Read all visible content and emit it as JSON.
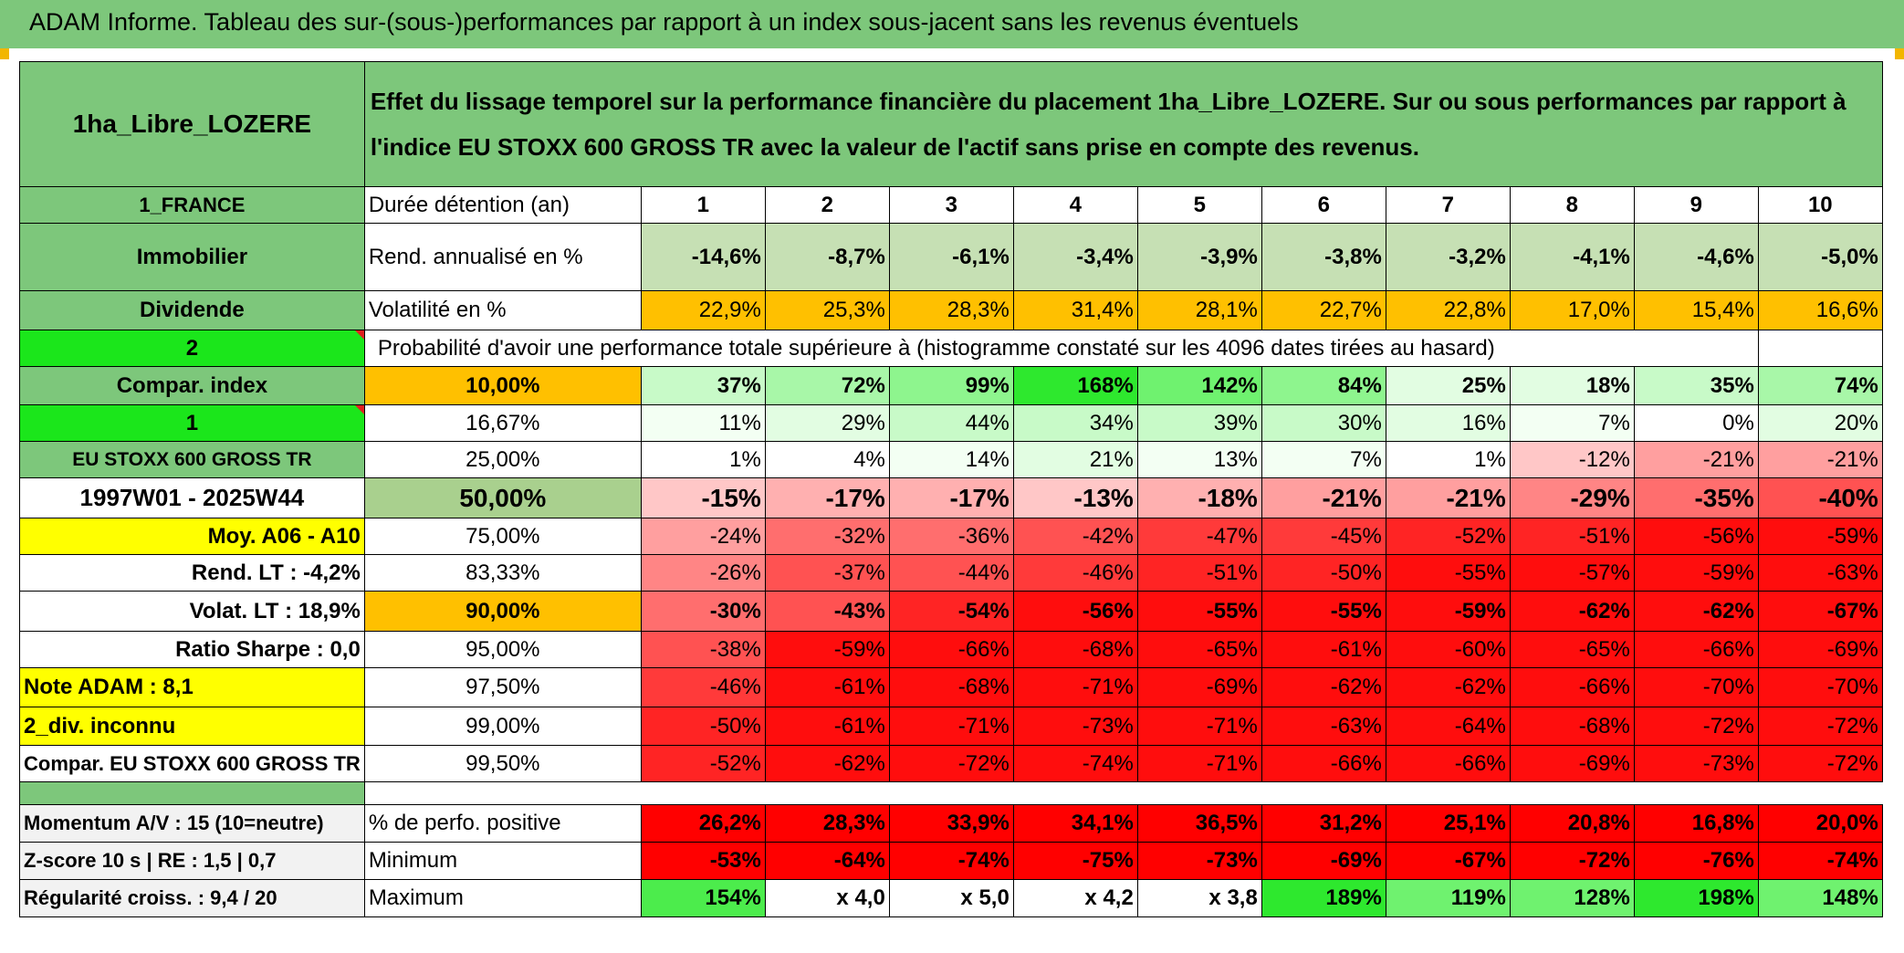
{
  "title": "ADAM Informe. Tableau des sur-(sous-)performances par rapport à un index sous-jacent sans les revenus éventuels",
  "fund_name": "1ha_Libre_LOZERE",
  "description": "Effet du lissage temporel sur la performance financière du placement 1ha_Libre_LOZERE. Sur ou sous performances par rapport à l'indice EU STOXX 600 GROSS TR avec la valeur de l'actif sans prise en compte des revenus.",
  "side": {
    "country": "1_FRANCE",
    "category": "Immobilier",
    "type": "Dividende",
    "sel1": "2",
    "compar_index_label": "Compar. index",
    "sel2": "1",
    "index_name": "EU STOXX 600 GROSS TR",
    "period": "1997W01 - 2025W44",
    "moy": "Moy. A06 - A10",
    "rend_lt": "Rend. LT :    -4,2%",
    "volat_lt": "Volat. LT :   18,9%",
    "sharpe": "Ratio Sharpe :    0,0",
    "note": "Note ADAM : 8,1",
    "div": "2_div. inconnu",
    "compar": "Compar. EU STOXX 600 GROSS TR",
    "momentum": "Momentum A/V : 15 (10=neutre)",
    "zscore": "Z-score 10 s | RE : 1,5 | 0,7",
    "regul": "Régularité croiss. : 9,4 / 20"
  },
  "stats": {
    "duration_label": "Durée détention (an)",
    "years": [
      "1",
      "2",
      "3",
      "4",
      "5",
      "6",
      "7",
      "8",
      "9",
      "10"
    ],
    "rend_label": "Rend. annualisé en %",
    "rend": [
      "-14,6%",
      "-8,7%",
      "-6,1%",
      "-3,4%",
      "-3,9%",
      "-3,8%",
      "-3,2%",
      "-4,1%",
      "-4,6%",
      "-5,0%"
    ],
    "vol_label": "Volatilité en %",
    "vol": [
      "22,9%",
      "25,3%",
      "28,3%",
      "31,4%",
      "28,1%",
      "22,7%",
      "22,8%",
      "17,0%",
      "15,4%",
      "16,6%"
    ]
  },
  "prob_header": "Probabilité d'avoir une performance totale supérieure à (histogramme constaté sur les 4096 dates tirées au hasard)",
  "prob_rows": [
    {
      "pct": "10,00%",
      "vals": [
        "37%",
        "72%",
        "99%",
        "168%",
        "142%",
        "84%",
        "25%",
        "18%",
        "35%",
        "74%"
      ]
    },
    {
      "pct": "16,67%",
      "vals": [
        "11%",
        "29%",
        "44%",
        "34%",
        "39%",
        "30%",
        "16%",
        "7%",
        "0%",
        "20%"
      ]
    },
    {
      "pct": "25,00%",
      "vals": [
        "1%",
        "4%",
        "14%",
        "21%",
        "13%",
        "7%",
        "1%",
        "-12%",
        "-21%",
        "-21%"
      ]
    },
    {
      "pct": "50,00%",
      "vals": [
        "-15%",
        "-17%",
        "-17%",
        "-13%",
        "-18%",
        "-21%",
        "-21%",
        "-29%",
        "-35%",
        "-40%"
      ]
    },
    {
      "pct": "75,00%",
      "vals": [
        "-24%",
        "-32%",
        "-36%",
        "-42%",
        "-47%",
        "-45%",
        "-52%",
        "-51%",
        "-56%",
        "-59%"
      ]
    },
    {
      "pct": "83,33%",
      "vals": [
        "-26%",
        "-37%",
        "-44%",
        "-46%",
        "-51%",
        "-50%",
        "-55%",
        "-57%",
        "-59%",
        "-63%"
      ]
    },
    {
      "pct": "90,00%",
      "vals": [
        "-30%",
        "-43%",
        "-54%",
        "-56%",
        "-55%",
        "-55%",
        "-59%",
        "-62%",
        "-62%",
        "-67%"
      ]
    },
    {
      "pct": "95,00%",
      "vals": [
        "-38%",
        "-59%",
        "-66%",
        "-68%",
        "-65%",
        "-61%",
        "-60%",
        "-65%",
        "-66%",
        "-69%"
      ]
    },
    {
      "pct": "97,50%",
      "vals": [
        "-46%",
        "-61%",
        "-68%",
        "-71%",
        "-69%",
        "-62%",
        "-62%",
        "-66%",
        "-70%",
        "-70%"
      ]
    },
    {
      "pct": "99,00%",
      "vals": [
        "-50%",
        "-61%",
        "-71%",
        "-73%",
        "-71%",
        "-63%",
        "-64%",
        "-68%",
        "-72%",
        "-72%"
      ]
    },
    {
      "pct": "99,50%",
      "vals": [
        "-52%",
        "-62%",
        "-72%",
        "-74%",
        "-71%",
        "-66%",
        "-66%",
        "-69%",
        "-73%",
        "-72%"
      ]
    }
  ],
  "bottom": {
    "pos_label": "% de perfo. positive",
    "pos": [
      "26,2%",
      "28,3%",
      "33,9%",
      "34,1%",
      "36,5%",
      "31,2%",
      "25,1%",
      "20,8%",
      "16,8%",
      "20,0%"
    ],
    "min_label": "Minimum",
    "min": [
      "-53%",
      "-64%",
      "-74%",
      "-75%",
      "-73%",
      "-69%",
      "-67%",
      "-72%",
      "-76%",
      "-74%"
    ],
    "max_label": "Maximum",
    "max": [
      "154%",
      "x 4,0",
      "x 5,0",
      "x 4,2",
      "x 3,8",
      "189%",
      "119%",
      "128%",
      "198%",
      "148%"
    ]
  },
  "colors": {
    "header_green": "#7dc77b",
    "bright_green": "#1be61b",
    "orange": "#ffc000",
    "yellow": "#ffff00",
    "light_green": "#c6e0b4",
    "red": "#ff0000"
  }
}
